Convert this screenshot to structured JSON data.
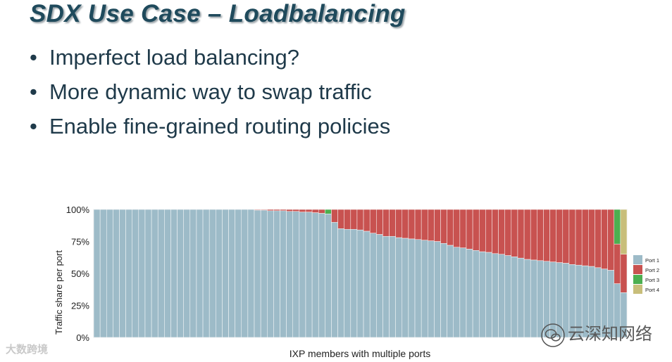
{
  "slide": {
    "title": "SDX Use Case – Loadbalancing",
    "bullets": [
      "Imperfect load balancing?",
      "More dynamic way to swap traffic",
      "Enable fine-grained routing policies"
    ]
  },
  "watermarks": {
    "left": "大数跨境",
    "right": "云深知网络"
  },
  "chart_data": {
    "type": "bar",
    "stacked": true,
    "ylabel": "Traffic share per port",
    "xlabel": "IXP members with multiple ports",
    "ylim": [
      0,
      100
    ],
    "yticks": [
      "0%",
      "25%",
      "50%",
      "75%",
      "100%"
    ],
    "legend_position": "right",
    "grid": true,
    "category_count": 83,
    "series": [
      {
        "name": "Port 1",
        "color": "#9dbbc8",
        "values": [
          100,
          100,
          100,
          100,
          100,
          100,
          100,
          100,
          100,
          100,
          100,
          100,
          100,
          100,
          100,
          100,
          100,
          100,
          100,
          100,
          100,
          100,
          100,
          100,
          100,
          99.5,
          99.5,
          99,
          99,
          99,
          98.5,
          98.5,
          98,
          98,
          97.5,
          97,
          96.5,
          90,
          85,
          84.5,
          84.5,
          84,
          83,
          81.5,
          80.5,
          79,
          79,
          78,
          77.5,
          77,
          76.5,
          76,
          75.5,
          75,
          73.5,
          72,
          70.5,
          70,
          69,
          68,
          67,
          66.5,
          65.5,
          65,
          64,
          63,
          62,
          61,
          60.5,
          60,
          59.5,
          59,
          58.5,
          58,
          57,
          56.5,
          56,
          55.5,
          54.5,
          53.5,
          52.5,
          42,
          35
        ]
      },
      {
        "name": "Port 2",
        "color": "#c85250",
        "values": [
          0,
          0,
          0,
          0,
          0,
          0,
          0,
          0,
          0,
          0,
          0,
          0,
          0,
          0,
          0,
          0,
          0,
          0,
          0,
          0,
          0,
          0,
          0,
          0,
          0,
          0.5,
          0.5,
          1,
          1,
          1,
          1.5,
          1.5,
          2,
          2,
          2.5,
          3,
          0,
          10,
          15,
          15.5,
          15.5,
          16,
          17,
          18.5,
          19.5,
          21,
          21,
          22,
          22.5,
          23,
          23.5,
          24,
          24.5,
          25,
          26.5,
          28,
          29.5,
          30,
          31,
          32,
          33,
          33.5,
          34.5,
          35,
          36,
          37,
          38,
          39,
          39.5,
          40,
          40.5,
          41,
          41.5,
          42,
          43,
          43.5,
          44,
          44.5,
          45.5,
          46.5,
          47.5,
          31,
          30
        ]
      },
      {
        "name": "Port 3",
        "color": "#4caf50",
        "values": [
          0,
          0,
          0,
          0,
          0,
          0,
          0,
          0,
          0,
          0,
          0,
          0,
          0,
          0,
          0,
          0,
          0,
          0,
          0,
          0,
          0,
          0,
          0,
          0,
          0,
          0,
          0,
          0,
          0,
          0,
          0,
          0,
          0,
          0,
          0,
          0,
          3.5,
          0,
          0,
          0,
          0,
          0,
          0,
          0,
          0,
          0,
          0,
          0,
          0,
          0,
          0,
          0,
          0,
          0,
          0,
          0,
          0,
          0,
          0,
          0,
          0,
          0,
          0,
          0,
          0,
          0,
          0,
          0,
          0,
          0,
          0,
          0,
          0,
          0,
          0,
          0,
          0,
          0,
          0,
          0,
          0,
          27,
          0
        ]
      },
      {
        "name": "Port 4",
        "color": "#c8be7a",
        "values": [
          0,
          0,
          0,
          0,
          0,
          0,
          0,
          0,
          0,
          0,
          0,
          0,
          0,
          0,
          0,
          0,
          0,
          0,
          0,
          0,
          0,
          0,
          0,
          0,
          0,
          0,
          0,
          0,
          0,
          0,
          0,
          0,
          0,
          0,
          0,
          0,
          0,
          0,
          0,
          0,
          0,
          0,
          0,
          0,
          0,
          0,
          0,
          0,
          0,
          0,
          0,
          0,
          0,
          0,
          0,
          0,
          0,
          0,
          0,
          0,
          0,
          0,
          0,
          0,
          0,
          0,
          0,
          0,
          0,
          0,
          0,
          0,
          0,
          0,
          0,
          0,
          0,
          0,
          0,
          0,
          0,
          0,
          35
        ]
      }
    ]
  }
}
